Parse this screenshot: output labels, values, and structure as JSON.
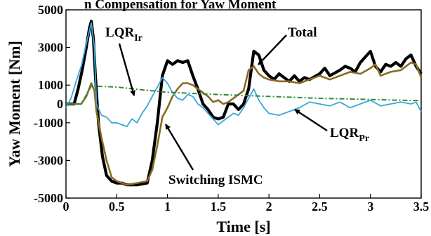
{
  "top_fragment": "n Compensation for Yaw Moment",
  "chart_data": {
    "type": "line",
    "title": "",
    "xlabel": "Time [s]",
    "ylabel": "Yaw Moment [Nm]",
    "xlim": [
      0,
      3.5
    ],
    "ylim": [
      -5000,
      5000
    ],
    "x_ticks": [
      0,
      0.5,
      1,
      1.5,
      2,
      2.5,
      3,
      3.5
    ],
    "x_tick_labels": [
      "0",
      "0.5",
      "1",
      "1.5",
      "2",
      "2.5",
      "3",
      "3.5"
    ],
    "y_ticks": [
      -5000,
      -3000,
      -1000,
      0,
      1000,
      3000,
      5000
    ],
    "y_tick_labels": [
      "-5000",
      "-3000",
      "-1000",
      "0",
      "1000",
      "3000",
      "5000"
    ],
    "grid": false,
    "legend": "none (inline annotations with arrows)",
    "series": [
      {
        "name": "Total",
        "color": "#000000",
        "x": [
          0,
          0.08,
          0.12,
          0.16,
          0.2,
          0.23,
          0.25,
          0.27,
          0.29,
          0.32,
          0.36,
          0.4,
          0.45,
          0.5,
          0.55,
          0.6,
          0.7,
          0.8,
          0.85,
          0.9,
          0.95,
          1.0,
          1.05,
          1.1,
          1.15,
          1.2,
          1.25,
          1.3,
          1.35,
          1.4,
          1.45,
          1.5,
          1.55,
          1.6,
          1.65,
          1.7,
          1.75,
          1.8,
          1.85,
          1.9,
          1.95,
          2.0,
          2.05,
          2.1,
          2.15,
          2.2,
          2.25,
          2.3,
          2.35,
          2.4,
          2.5,
          2.55,
          2.6,
          2.7,
          2.75,
          2.8,
          2.85,
          2.9,
          2.95,
          3.0,
          3.05,
          3.1,
          3.15,
          3.2,
          3.25,
          3.3,
          3.35,
          3.4,
          3.45,
          3.5
        ],
        "y": [
          0,
          0,
          800,
          1800,
          3000,
          4000,
          4400,
          3500,
          1500,
          -1000,
          -2800,
          -3800,
          -4100,
          -4200,
          -4200,
          -4300,
          -4300,
          -4200,
          -3000,
          -1000,
          1500,
          2300,
          2100,
          2300,
          2200,
          2300,
          1500,
          800,
          0,
          -300,
          -700,
          -800,
          -700,
          0,
          0,
          -300,
          0,
          800,
          2800,
          2600,
          1800,
          1500,
          1300,
          1600,
          1400,
          1200,
          1500,
          1200,
          1400,
          1300,
          1600,
          1900,
          1500,
          1800,
          2000,
          1900,
          1700,
          2200,
          2500,
          2800,
          2000,
          1700,
          2100,
          2000,
          2200,
          2000,
          2400,
          2600,
          2000,
          1600
        ]
      },
      {
        "name": "Switching ISMC",
        "color": "#8a6a1e",
        "x": [
          0,
          0.15,
          0.2,
          0.25,
          0.28,
          0.3,
          0.35,
          0.4,
          0.45,
          0.5,
          0.6,
          0.7,
          0.8,
          0.85,
          0.9,
          0.95,
          1.0,
          1.05,
          1.1,
          1.15,
          1.2,
          1.25,
          1.3,
          1.35,
          1.4,
          1.45,
          1.5,
          1.55,
          1.6,
          1.7,
          1.75,
          1.8,
          1.85,
          1.9,
          1.95,
          2.0,
          2.1,
          2.2,
          2.3,
          2.4,
          2.5,
          2.6,
          2.7,
          2.8,
          2.9,
          3.0,
          3.05,
          3.1,
          3.2,
          3.3,
          3.4,
          3.45,
          3.5
        ],
        "y": [
          0,
          0,
          400,
          1100,
          700,
          -400,
          -1800,
          -3000,
          -3900,
          -4100,
          -4300,
          -4200,
          -4100,
          -3500,
          -2200,
          -700,
          -200,
          400,
          800,
          1100,
          1100,
          1000,
          800,
          600,
          400,
          100,
          200,
          0,
          100,
          500,
          700,
          1800,
          2000,
          1600,
          1400,
          1300,
          1200,
          1200,
          1100,
          1300,
          1500,
          1300,
          1500,
          1700,
          1600,
          1900,
          2100,
          1500,
          1700,
          1800,
          2200,
          2100,
          1400
        ]
      },
      {
        "name": "LQR_Pr",
        "color": "#3aa6dc",
        "x": [
          0,
          0.05,
          0.1,
          0.15,
          0.2,
          0.25,
          0.28,
          0.3,
          0.35,
          0.4,
          0.45,
          0.5,
          0.55,
          0.6,
          0.65,
          0.7,
          0.75,
          0.8,
          0.85,
          0.9,
          0.95,
          1.0,
          1.05,
          1.1,
          1.15,
          1.2,
          1.25,
          1.3,
          1.35,
          1.4,
          1.45,
          1.5,
          1.55,
          1.6,
          1.65,
          1.7,
          1.75,
          1.8,
          1.85,
          1.9,
          1.95,
          2.0,
          2.1,
          2.2,
          2.3,
          2.4,
          2.5,
          2.6,
          2.7,
          2.8,
          2.9,
          3.0,
          3.1,
          3.2,
          3.3,
          3.4,
          3.45,
          3.5
        ],
        "y": [
          -200,
          300,
          1200,
          2000,
          3200,
          4300,
          3000,
          0,
          -600,
          -700,
          -1000,
          -1000,
          -1100,
          -1200,
          -800,
          -1000,
          -500,
          -100,
          400,
          900,
          1400,
          1100,
          600,
          300,
          200,
          500,
          400,
          0,
          -200,
          -500,
          -800,
          -1100,
          -900,
          -700,
          -500,
          -600,
          -200,
          300,
          800,
          200,
          -200,
          -500,
          -600,
          -400,
          -200,
          100,
          0,
          -100,
          100,
          -200,
          0,
          200,
          -100,
          0,
          100,
          0,
          100,
          -400
        ]
      },
      {
        "name": "LQR_Ir",
        "color": "#2e8b3e",
        "x": [
          0,
          0.15,
          0.25,
          0.5,
          0.75,
          1.0,
          1.25,
          1.5,
          1.75,
          2.0,
          2.25,
          2.5,
          2.75,
          3.0,
          3.25,
          3.5
        ],
        "y": [
          0,
          0,
          950,
          900,
          750,
          620,
          560,
          500,
          450,
          400,
          350,
          300,
          270,
          240,
          200,
          180
        ]
      }
    ],
    "annotations": [
      {
        "text": "LQR",
        "sub": "Ir"
      },
      {
        "text": "Total",
        "sub": ""
      },
      {
        "text": "LQR",
        "sub": "Pr"
      },
      {
        "text": "Switching ISMC",
        "sub": ""
      }
    ]
  }
}
